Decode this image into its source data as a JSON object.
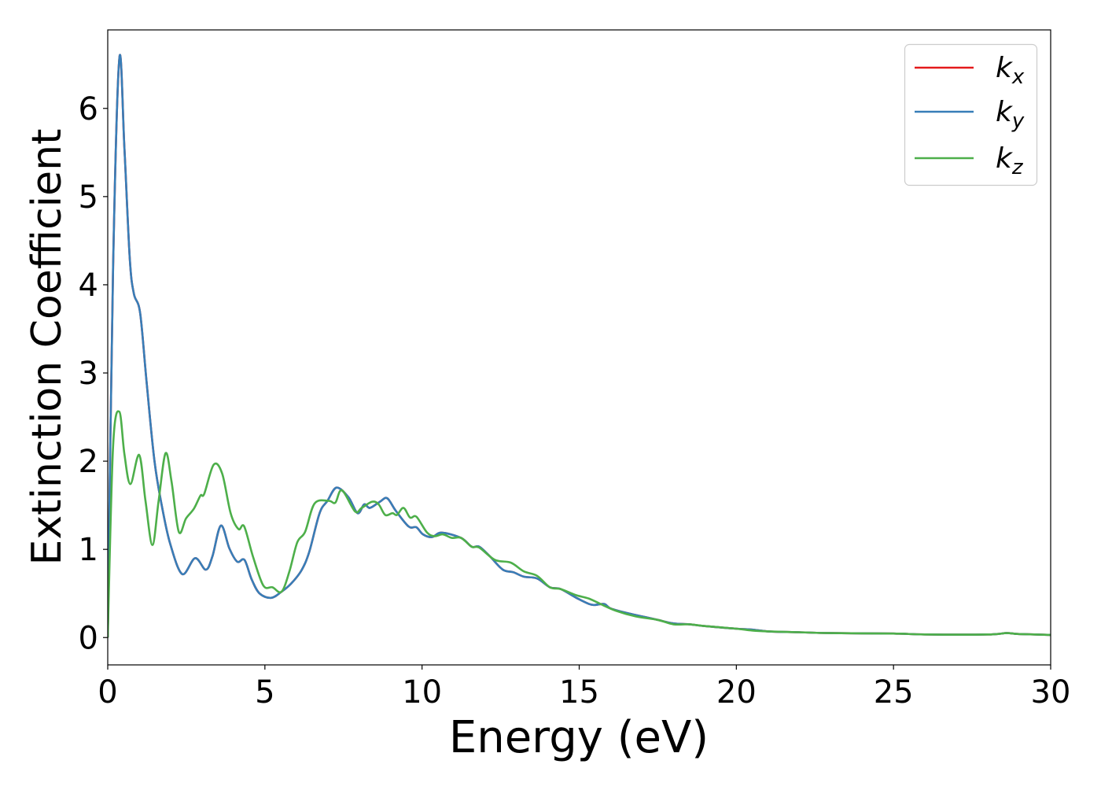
{
  "chart_data": {
    "type": "line",
    "title": "",
    "xlabel": "Energy (eV)",
    "ylabel": "Extinction Coefficient",
    "xlim": [
      0,
      30
    ],
    "ylim": [
      -0.31,
      6.89
    ],
    "xticks": [
      0,
      5,
      10,
      15,
      20,
      25,
      30
    ],
    "yticks": [
      0,
      1,
      2,
      3,
      4,
      5,
      6
    ],
    "grid": false,
    "legend_placement": "top-right",
    "series": [
      {
        "name": "k_x",
        "color": "#e41a1c",
        "x": [
          0,
          0.17,
          0.37,
          0.53,
          0.7,
          0.83,
          1.03,
          1.24,
          1.49,
          1.74,
          1.99,
          2.37,
          2.78,
          3.12,
          3.33,
          3.6,
          3.87,
          4.12,
          4.35,
          4.58,
          4.83,
          5.2,
          5.53,
          5.83,
          6.16,
          6.41,
          6.74,
          6.99,
          7.28,
          7.66,
          7.95,
          8.16,
          8.34,
          8.66,
          8.89,
          9.16,
          9.57,
          9.82,
          10.03,
          10.32,
          10.62,
          11.24,
          11.58,
          11.82,
          12.16,
          12.57,
          12.91,
          13.24,
          13.66,
          14.07,
          14.41,
          14.91,
          15.32,
          15.5,
          15.8,
          16.0,
          16.5,
          17.0,
          17.5,
          18.0,
          18.5,
          19.0,
          20.0,
          20.5,
          21.0,
          22.0,
          23.0,
          25.0,
          26.0,
          28.0,
          28.6,
          29.0,
          30.0
        ],
        "y": [
          0,
          4.2,
          6.57,
          5.55,
          4.3,
          3.9,
          3.68,
          2.88,
          1.99,
          1.46,
          1.06,
          0.72,
          0.9,
          0.77,
          0.92,
          1.27,
          1.01,
          0.86,
          0.88,
          0.66,
          0.5,
          0.45,
          0.52,
          0.61,
          0.76,
          0.97,
          1.41,
          1.55,
          1.7,
          1.59,
          1.41,
          1.51,
          1.47,
          1.54,
          1.58,
          1.44,
          1.26,
          1.25,
          1.17,
          1.14,
          1.19,
          1.13,
          1.03,
          1.03,
          0.92,
          0.77,
          0.74,
          0.69,
          0.67,
          0.57,
          0.55,
          0.45,
          0.38,
          0.37,
          0.38,
          0.33,
          0.28,
          0.24,
          0.2,
          0.16,
          0.15,
          0.13,
          0.1,
          0.09,
          0.07,
          0.06,
          0.05,
          0.045,
          0.035,
          0.035,
          0.05,
          0.04,
          0.03
        ]
      },
      {
        "name": "k_y",
        "color": "#377eb8",
        "x": [
          0,
          0.17,
          0.37,
          0.53,
          0.7,
          0.83,
          1.03,
          1.24,
          1.49,
          1.74,
          1.99,
          2.37,
          2.78,
          3.12,
          3.33,
          3.6,
          3.87,
          4.12,
          4.35,
          4.58,
          4.83,
          5.2,
          5.53,
          5.83,
          6.16,
          6.41,
          6.74,
          6.99,
          7.28,
          7.66,
          7.95,
          8.16,
          8.34,
          8.66,
          8.89,
          9.16,
          9.57,
          9.82,
          10.03,
          10.32,
          10.62,
          11.24,
          11.58,
          11.82,
          12.16,
          12.57,
          12.91,
          13.24,
          13.66,
          14.07,
          14.41,
          14.91,
          15.32,
          15.5,
          15.8,
          16.0,
          16.5,
          17.0,
          17.5,
          18.0,
          18.5,
          19.0,
          20.0,
          20.5,
          21.0,
          22.0,
          23.0,
          25.0,
          26.0,
          28.0,
          28.6,
          29.0,
          30.0
        ],
        "y": [
          0,
          4.2,
          6.57,
          5.55,
          4.3,
          3.9,
          3.68,
          2.88,
          1.99,
          1.46,
          1.06,
          0.72,
          0.9,
          0.77,
          0.92,
          1.27,
          1.01,
          0.86,
          0.88,
          0.66,
          0.5,
          0.45,
          0.52,
          0.61,
          0.76,
          0.97,
          1.41,
          1.55,
          1.7,
          1.59,
          1.41,
          1.51,
          1.47,
          1.54,
          1.58,
          1.44,
          1.26,
          1.25,
          1.17,
          1.14,
          1.19,
          1.13,
          1.03,
          1.03,
          0.92,
          0.77,
          0.74,
          0.69,
          0.67,
          0.57,
          0.55,
          0.45,
          0.38,
          0.37,
          0.38,
          0.33,
          0.28,
          0.24,
          0.2,
          0.16,
          0.15,
          0.13,
          0.1,
          0.09,
          0.07,
          0.06,
          0.05,
          0.045,
          0.035,
          0.035,
          0.05,
          0.04,
          0.03
        ]
      },
      {
        "name": "k_z",
        "color": "#4daf4a",
        "x": [
          0,
          0.17,
          0.37,
          0.53,
          0.72,
          1.0,
          1.2,
          1.42,
          1.62,
          1.84,
          2.03,
          2.26,
          2.49,
          2.74,
          2.95,
          3.07,
          3.37,
          3.64,
          3.91,
          4.16,
          4.34,
          4.62,
          4.95,
          5.24,
          5.53,
          5.78,
          6.03,
          6.28,
          6.58,
          7.03,
          7.24,
          7.45,
          7.87,
          8.08,
          8.41,
          8.62,
          8.83,
          9.06,
          9.2,
          9.41,
          9.62,
          9.82,
          10.16,
          10.41,
          10.66,
          10.95,
          11.24,
          11.58,
          11.82,
          12.32,
          12.82,
          13.24,
          13.66,
          14.07,
          14.41,
          14.91,
          15.32,
          15.8,
          16.2,
          16.8,
          17.5,
          18.0,
          18.5,
          19.0,
          20.0,
          20.5,
          21.0,
          22.0,
          23.0,
          25.0,
          26.0,
          28.0,
          28.6,
          29.0,
          30.0
        ],
        "y": [
          0,
          2.17,
          2.56,
          2.08,
          1.74,
          2.07,
          1.55,
          1.05,
          1.55,
          2.09,
          1.77,
          1.2,
          1.35,
          1.46,
          1.61,
          1.63,
          1.96,
          1.86,
          1.41,
          1.23,
          1.26,
          0.92,
          0.59,
          0.57,
          0.52,
          0.75,
          1.08,
          1.2,
          1.52,
          1.55,
          1.53,
          1.67,
          1.43,
          1.47,
          1.54,
          1.51,
          1.39,
          1.41,
          1.39,
          1.47,
          1.36,
          1.37,
          1.19,
          1.15,
          1.17,
          1.13,
          1.13,
          1.03,
          1.02,
          0.88,
          0.85,
          0.75,
          0.7,
          0.57,
          0.55,
          0.48,
          0.44,
          0.36,
          0.3,
          0.24,
          0.2,
          0.15,
          0.15,
          0.13,
          0.1,
          0.08,
          0.07,
          0.06,
          0.05,
          0.045,
          0.035,
          0.035,
          0.05,
          0.04,
          0.03
        ]
      }
    ]
  }
}
